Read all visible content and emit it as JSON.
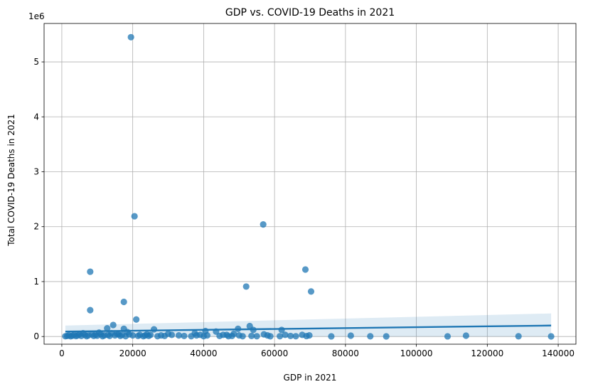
{
  "chart_data": {
    "type": "scatter",
    "title": "GDP vs. COVID-19 Deaths in 2021",
    "xlabel": "GDP in 2021",
    "ylabel": "Total COVID-19 Deaths in 2021",
    "y_offset_label": "1e6",
    "xlim": [
      -5000,
      145000
    ],
    "ylim": [
      -0.14,
      5.7
    ],
    "x_ticks": [
      0,
      20000,
      40000,
      60000,
      80000,
      100000,
      120000,
      140000
    ],
    "x_tick_labels": [
      "0",
      "20000",
      "40000",
      "60000",
      "80000",
      "100000",
      "120000",
      "140000"
    ],
    "y_ticks": [
      0,
      1,
      2,
      3,
      4,
      5
    ],
    "y_tick_labels": [
      "0",
      "1",
      "2",
      "3",
      "4",
      "5"
    ],
    "grid": true,
    "point_color": "#1f77b4",
    "points": [
      [
        19500,
        5.45
      ],
      [
        20500,
        2.19
      ],
      [
        56800,
        2.04
      ],
      [
        68700,
        1.22
      ],
      [
        8000,
        1.18
      ],
      [
        52000,
        0.91
      ],
      [
        70300,
        0.82
      ],
      [
        17500,
        0.63
      ],
      [
        8000,
        0.48
      ],
      [
        21000,
        0.31
      ],
      [
        14500,
        0.21
      ],
      [
        12800,
        0.15
      ],
      [
        53000,
        0.19
      ],
      [
        17500,
        0.14
      ],
      [
        26000,
        0.13
      ],
      [
        40500,
        0.1
      ],
      [
        43500,
        0.09
      ],
      [
        49700,
        0.14
      ],
      [
        54000,
        0.12
      ],
      [
        62000,
        0.12
      ],
      [
        6000,
        0.06
      ],
      [
        10500,
        0.07
      ],
      [
        15500,
        0.05
      ],
      [
        18500,
        0.08
      ],
      [
        24000,
        0.04
      ],
      [
        30000,
        0.05
      ],
      [
        37500,
        0.06
      ],
      [
        46500,
        0.03
      ],
      [
        48500,
        0.05
      ],
      [
        57000,
        0.04
      ],
      [
        63000,
        0.03
      ],
      [
        67800,
        0.03
      ],
      [
        69800,
        0.02
      ],
      [
        81500,
        0.015
      ],
      [
        114000,
        0.015
      ],
      [
        1000,
        0.005
      ],
      [
        1500,
        0.01
      ],
      [
        2000,
        0.02
      ],
      [
        2500,
        0.004
      ],
      [
        3000,
        0.015
      ],
      [
        3500,
        0.03
      ],
      [
        4000,
        0.008
      ],
      [
        4500,
        0.02
      ],
      [
        5000,
        0.04
      ],
      [
        5500,
        0.01
      ],
      [
        6500,
        0.03
      ],
      [
        7000,
        0.005
      ],
      [
        7500,
        0.02
      ],
      [
        8500,
        0.04
      ],
      [
        9000,
        0.01
      ],
      [
        9500,
        0.03
      ],
      [
        10000,
        0.015
      ],
      [
        11000,
        0.04
      ],
      [
        11500,
        0.005
      ],
      [
        12000,
        0.02
      ],
      [
        13000,
        0.03
      ],
      [
        13500,
        0.01
      ],
      [
        14000,
        0.06
      ],
      [
        15000,
        0.02
      ],
      [
        16000,
        0.04
      ],
      [
        16500,
        0.01
      ],
      [
        17000,
        0.03
      ],
      [
        18000,
        0.005
      ],
      [
        19000,
        0.04
      ],
      [
        20000,
        0.02
      ],
      [
        21500,
        0.01
      ],
      [
        22000,
        0.03
      ],
      [
        23000,
        0.005
      ],
      [
        23500,
        0.02
      ],
      [
        24500,
        0.01
      ],
      [
        25000,
        0.03
      ],
      [
        27000,
        0.005
      ],
      [
        28000,
        0.02
      ],
      [
        29000,
        0.01
      ],
      [
        31000,
        0.03
      ],
      [
        33000,
        0.02
      ],
      [
        34500,
        0.01
      ],
      [
        36500,
        0.005
      ],
      [
        38000,
        0.02
      ],
      [
        39000,
        0.03
      ],
      [
        40000,
        0.005
      ],
      [
        41000,
        0.02
      ],
      [
        44500,
        0.01
      ],
      [
        45500,
        0.03
      ],
      [
        47000,
        0.005
      ],
      [
        48000,
        0.01
      ],
      [
        50000,
        0.02
      ],
      [
        51000,
        0.005
      ],
      [
        53500,
        0.01
      ],
      [
        55000,
        0.005
      ],
      [
        58000,
        0.02
      ],
      [
        58800,
        0.004
      ],
      [
        61500,
        0.005
      ],
      [
        64500,
        0.01
      ],
      [
        66000,
        0.005
      ],
      [
        69000,
        0.008
      ],
      [
        76000,
        0.003
      ],
      [
        87000,
        0.004
      ],
      [
        91500,
        0.002
      ],
      [
        108800,
        0.003
      ],
      [
        128800,
        0.004
      ],
      [
        138000,
        0.002
      ]
    ],
    "regression": {
      "x": [
        1000,
        138000
      ],
      "y": [
        0.09,
        0.2
      ],
      "ci_lower": [
        0.0,
        0.0
      ],
      "ci_upper": [
        0.2,
        0.42
      ],
      "line_color": "#1f77b4",
      "band_color": "#1f77b4"
    }
  }
}
